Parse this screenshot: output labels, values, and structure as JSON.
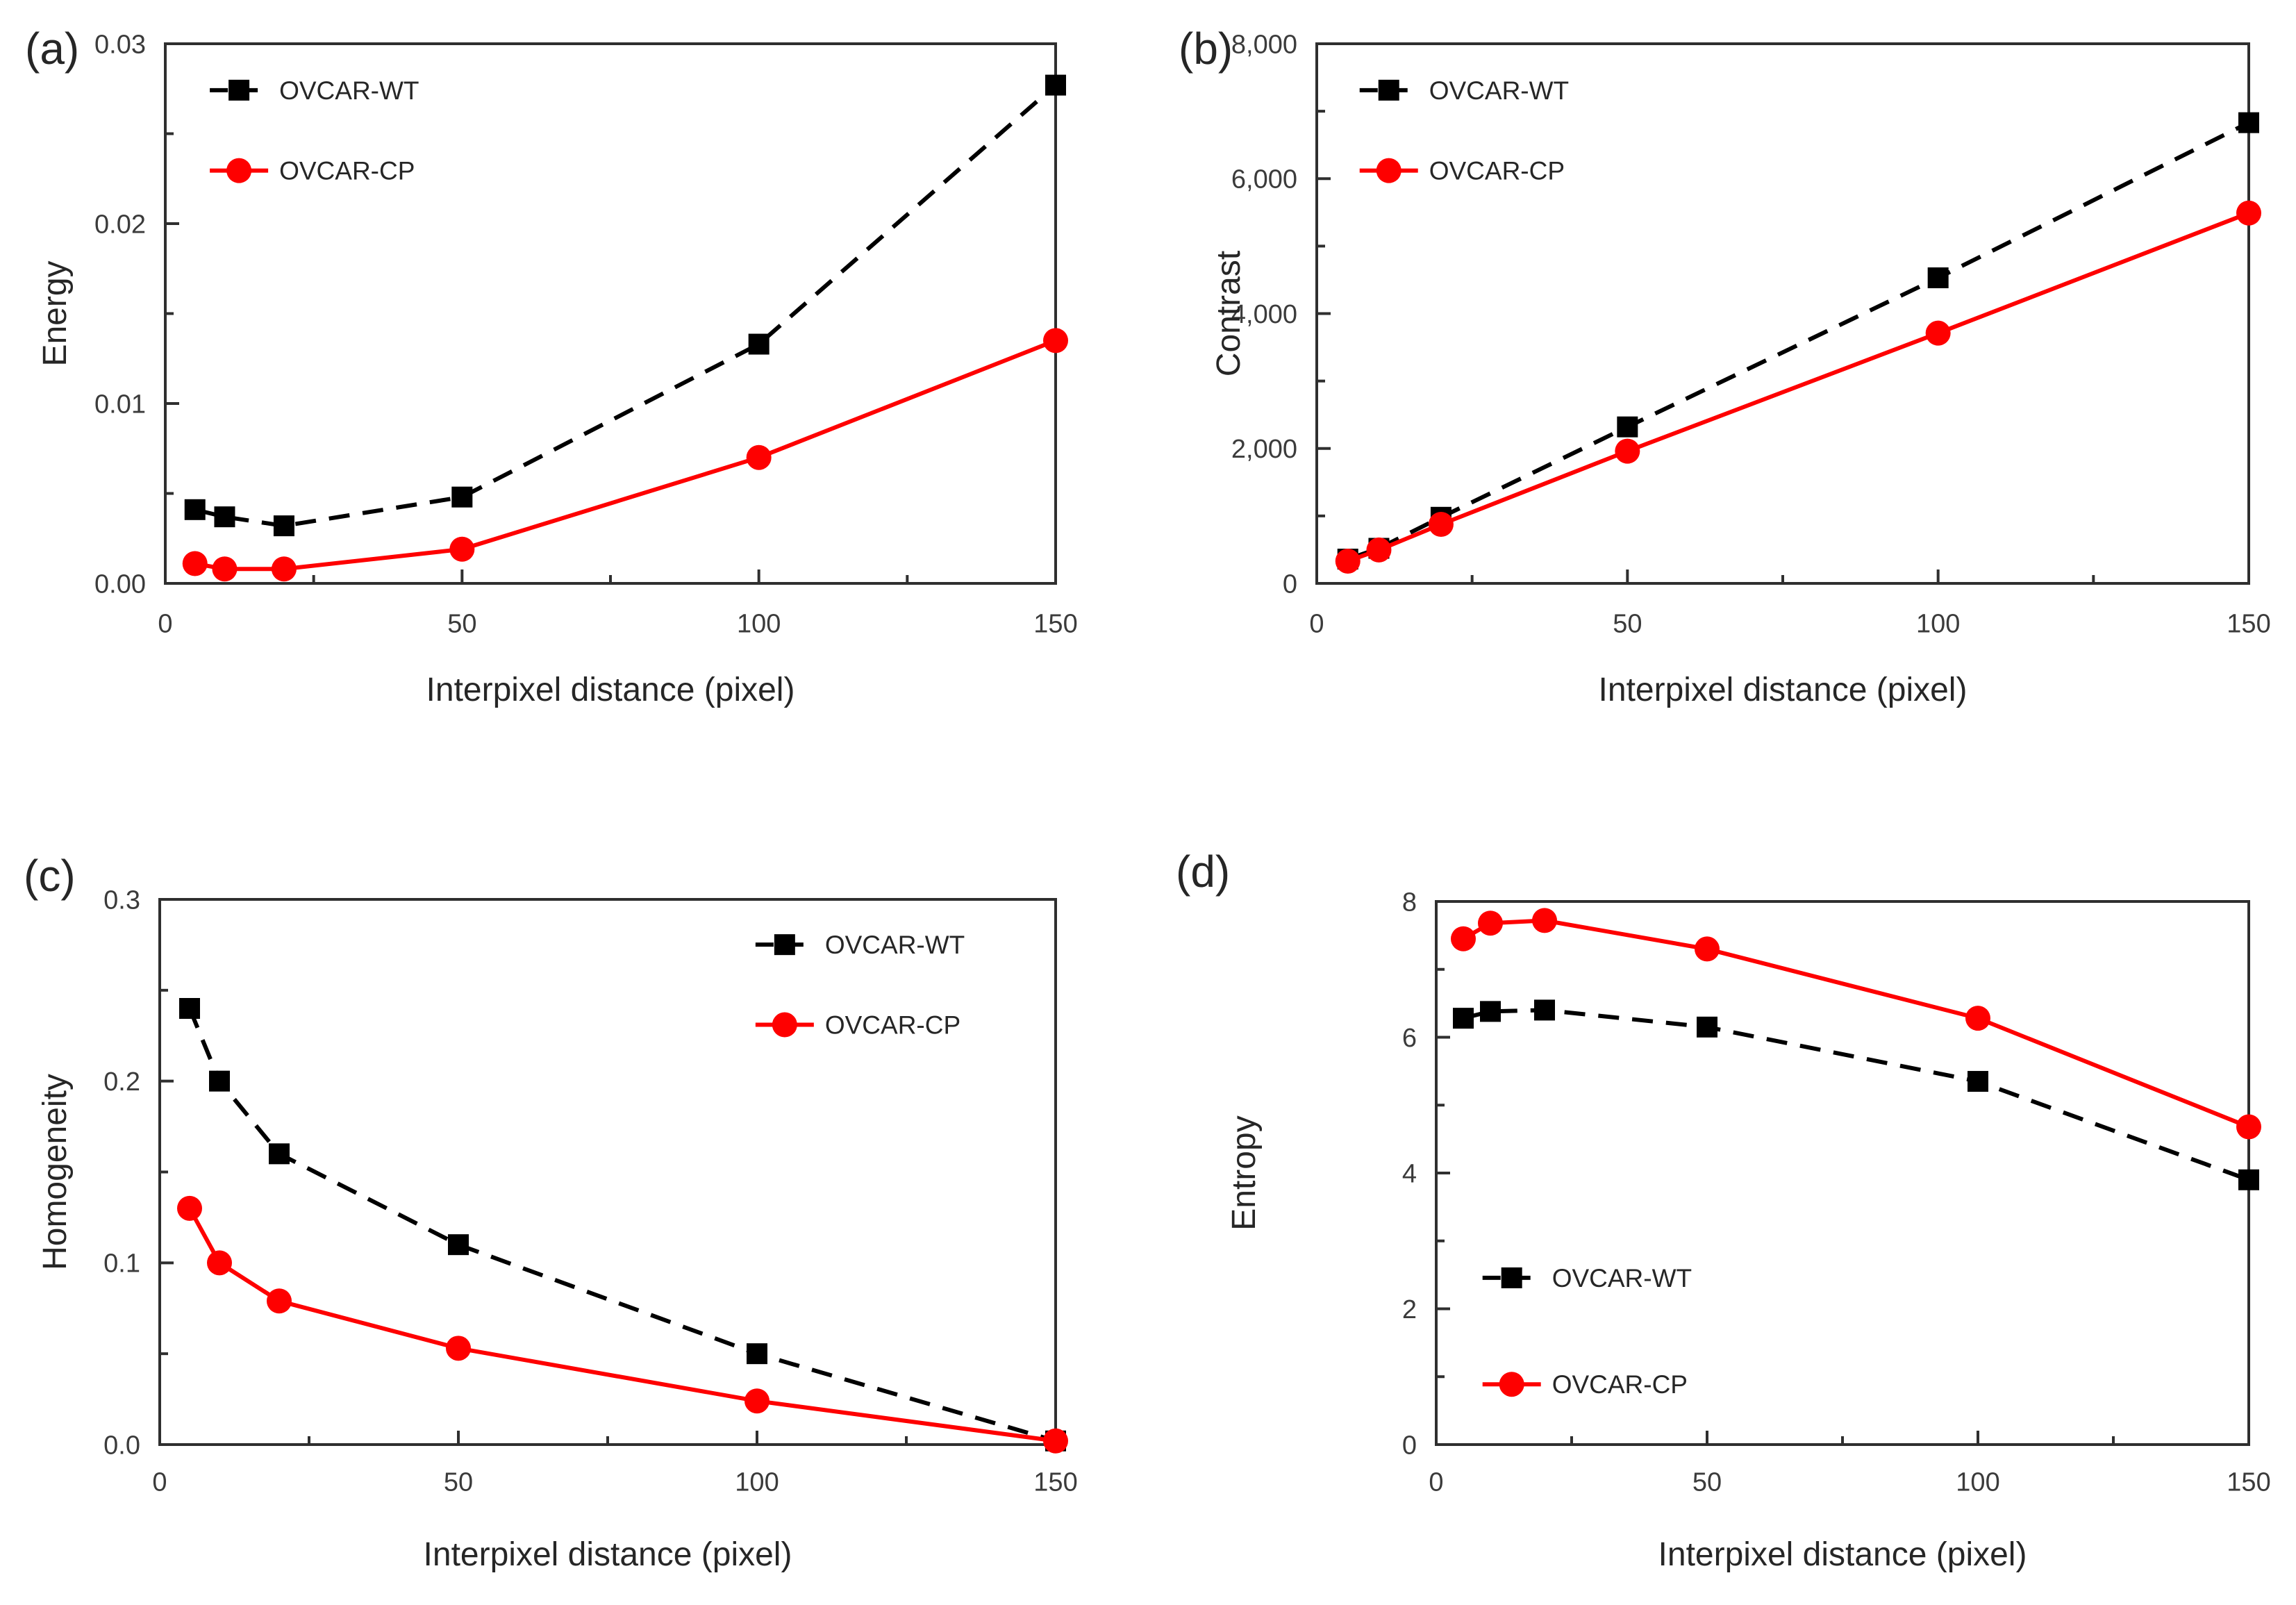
{
  "figure": {
    "background": "#ffffff",
    "accent_colors": {
      "ovcar_wt": "#000000",
      "ovcar_cp": "#fe0000",
      "axis": "#2f2f2f",
      "text": "#262626"
    },
    "legend_labels": [
      "OVCAR-WT",
      "OVCAR-CP"
    ]
  },
  "chart_data": [
    {
      "id": "a",
      "panel_label": "(a)",
      "type": "line",
      "title": "",
      "xlabel": "Interpixel distance  (pixel)",
      "ylabel": "Energy",
      "x": [
        5,
        10,
        20,
        50,
        100,
        150
      ],
      "xlim": [
        0,
        150
      ],
      "xticks": [
        0,
        50,
        100,
        150
      ],
      "xtick_labels": [
        "0",
        "50",
        "100",
        "150"
      ],
      "xminor_step": 25,
      "ylim": [
        0,
        0.03
      ],
      "ytick_values": [
        0,
        0.01,
        0.02,
        0.03
      ],
      "ytick_labels": [
        "0.00",
        "0.01",
        "0.02",
        "0.03"
      ],
      "yminor_step": 0.005,
      "grid": false,
      "legend_position": "top-left",
      "series": [
        {
          "name": "OVCAR-WT",
          "color": "#000000",
          "line": "dashed",
          "marker": "square",
          "values": [
            0.0041,
            0.0037,
            0.0032,
            0.0048,
            0.0133,
            0.0277
          ]
        },
        {
          "name": "OVCAR-CP",
          "color": "#fe0000",
          "line": "solid",
          "marker": "circle",
          "values": [
            0.0011,
            0.0008,
            0.0008,
            0.0019,
            0.007,
            0.0135
          ]
        }
      ]
    },
    {
      "id": "b",
      "panel_label": "(b)",
      "type": "line",
      "title": "",
      "xlabel": "Interpixel distance  (pixel)",
      "ylabel": "Contrast",
      "x": [
        5,
        10,
        20,
        50,
        100,
        150
      ],
      "xlim": [
        0,
        150
      ],
      "xticks": [
        0,
        50,
        100,
        150
      ],
      "xtick_labels": [
        "0",
        "50",
        "100",
        "150"
      ],
      "xminor_step": 25,
      "ylim": [
        0,
        8000
      ],
      "ytick_values": [
        0,
        2000,
        4000,
        6000,
        8000
      ],
      "ytick_labels": [
        "0",
        "2,000",
        "4,000",
        "6,000",
        "8,000"
      ],
      "yminor_step": 1000,
      "grid": false,
      "legend_position": "top-left",
      "series": [
        {
          "name": "OVCAR-WT",
          "color": "#000000",
          "line": "dashed",
          "marker": "square",
          "values": [
            360,
            520,
            980,
            2320,
            4530,
            6830
          ]
        },
        {
          "name": "OVCAR-CP",
          "color": "#fe0000",
          "line": "solid",
          "marker": "circle",
          "values": [
            330,
            495,
            875,
            1960,
            3710,
            5490
          ]
        }
      ]
    },
    {
      "id": "c",
      "panel_label": "(c)",
      "type": "line",
      "title": "",
      "xlabel": "Interpixel distance  (pixel)",
      "ylabel": "Homogeneity",
      "x": [
        5,
        10,
        20,
        50,
        100,
        150
      ],
      "xlim": [
        0,
        150
      ],
      "xticks": [
        0,
        50,
        100,
        150
      ],
      "xtick_labels": [
        "0",
        "50",
        "100",
        "150"
      ],
      "xminor_step": 25,
      "ylim": [
        0,
        0.3
      ],
      "ytick_values": [
        0,
        0.1,
        0.2,
        0.3
      ],
      "ytick_labels": [
        "0.0",
        "0.1",
        "0.2",
        "0.3"
      ],
      "yminor_step": 0.05,
      "grid": false,
      "legend_position": "top-right",
      "series": [
        {
          "name": "OVCAR-WT",
          "color": "#000000",
          "line": "dashed",
          "marker": "square",
          "values": [
            0.24,
            0.2,
            0.16,
            0.11,
            0.05,
            0.002
          ]
        },
        {
          "name": "OVCAR-CP",
          "color": "#fe0000",
          "line": "solid",
          "marker": "circle",
          "values": [
            0.13,
            0.1,
            0.079,
            0.053,
            0.024,
            0.002
          ]
        }
      ]
    },
    {
      "id": "d",
      "panel_label": "(d)",
      "type": "line",
      "title": "",
      "xlabel": "Interpixel distance  (pixel)",
      "ylabel": "Entropy",
      "x": [
        5,
        10,
        20,
        50,
        100,
        150
      ],
      "xlim": [
        0,
        150
      ],
      "xticks": [
        0,
        50,
        100,
        150
      ],
      "xtick_labels": [
        "0",
        "50",
        "100",
        "150"
      ],
      "xminor_step": 25,
      "ylim": [
        0,
        8
      ],
      "ytick_values": [
        0,
        2,
        4,
        6,
        8
      ],
      "ytick_labels": [
        "0",
        "2",
        "4",
        "6",
        "8"
      ],
      "yminor_step": 1,
      "grid": false,
      "legend_position": "bottom-left",
      "series": [
        {
          "name": "OVCAR-WT",
          "color": "#000000",
          "line": "dashed",
          "marker": "square",
          "values": [
            6.28,
            6.38,
            6.4,
            6.15,
            5.35,
            3.9
          ]
        },
        {
          "name": "OVCAR-CP",
          "color": "#fe0000",
          "line": "solid",
          "marker": "circle",
          "values": [
            7.45,
            7.68,
            7.72,
            7.3,
            6.28,
            4.68
          ]
        }
      ]
    }
  ]
}
